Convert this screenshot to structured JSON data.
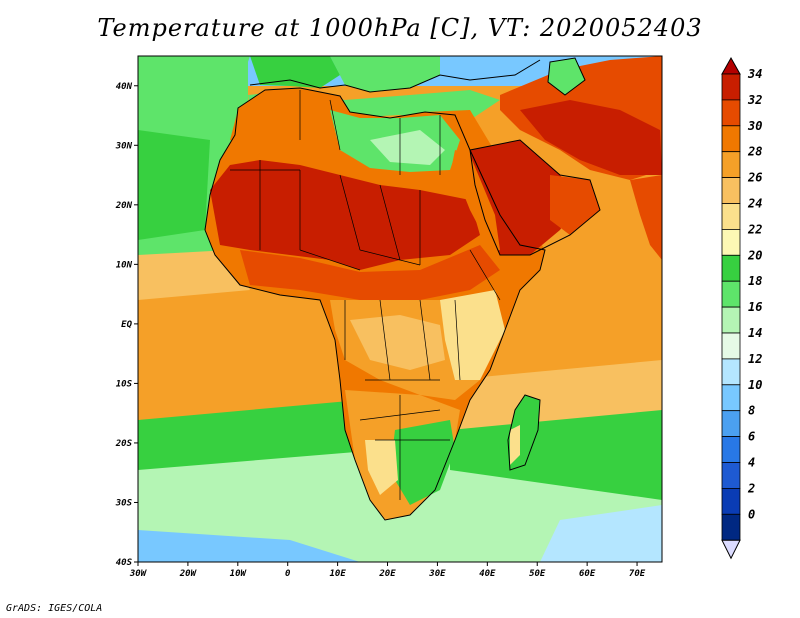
{
  "title": "Temperature at 1000hPa [C], VT: 2020052403",
  "credit": "GrADS: IGES/COLA",
  "map": {
    "projection": "lat-lon",
    "lon_range": [
      -30,
      75
    ],
    "lat_range": [
      -40,
      45
    ],
    "lon_ticks": [
      {
        "value": -30,
        "label": "30W"
      },
      {
        "value": -20,
        "label": "20W"
      },
      {
        "value": -10,
        "label": "10W"
      },
      {
        "value": 0,
        "label": "0"
      },
      {
        "value": 10,
        "label": "10E"
      },
      {
        "value": 20,
        "label": "20E"
      },
      {
        "value": 30,
        "label": "30E"
      },
      {
        "value": 40,
        "label": "40E"
      },
      {
        "value": 50,
        "label": "50E"
      },
      {
        "value": 60,
        "label": "60E"
      },
      {
        "value": 70,
        "label": "70E"
      }
    ],
    "lat_ticks": [
      {
        "value": 40,
        "label": "40N"
      },
      {
        "value": 30,
        "label": "30N"
      },
      {
        "value": 20,
        "label": "20N"
      },
      {
        "value": 10,
        "label": "10N"
      },
      {
        "value": 0,
        "label": "EQ"
      },
      {
        "value": -10,
        "label": "10S"
      },
      {
        "value": -20,
        "label": "20S"
      },
      {
        "value": -30,
        "label": "30S"
      },
      {
        "value": -40,
        "label": "40S"
      }
    ]
  },
  "colorbar": {
    "unit": "C",
    "levels": [
      {
        "label": "34",
        "color": "#c81e00"
      },
      {
        "label": "32",
        "color": "#e64b00"
      },
      {
        "label": "30",
        "color": "#f07800"
      },
      {
        "label": "28",
        "color": "#f5a028"
      },
      {
        "label": "26",
        "color": "#f8c060"
      },
      {
        "label": "24",
        "color": "#fbe08c"
      },
      {
        "label": "22",
        "color": "#fdf8b4"
      },
      {
        "label": "20",
        "color": "#37d040"
      },
      {
        "label": "18",
        "color": "#5ee46a"
      },
      {
        "label": "16",
        "color": "#b4f5b4"
      },
      {
        "label": "14",
        "color": "#e6fae6"
      },
      {
        "label": "12",
        "color": "#b4e6ff"
      },
      {
        "label": "10",
        "color": "#78c8ff"
      },
      {
        "label": "8",
        "color": "#4ba0f0"
      },
      {
        "label": "6",
        "color": "#2878e6"
      },
      {
        "label": "4",
        "color": "#1e5ad2"
      },
      {
        "label": "2",
        "color": "#0a3cb4"
      },
      {
        "label": "0",
        "color": "#002882"
      }
    ],
    "over_color": "#b40000",
    "under_color": "#dcdcff"
  },
  "colors": {
    "ocean_warm": "#f5a028",
    "ocean_mid": "#f8c060",
    "ocean_green": "#37d040",
    "ocean_cool": "#b4f5b4",
    "ocean_blue": "#78c8ff",
    "land_hot": "#c81e00",
    "land_warm": "#e64b00",
    "land_mild": "#f07800",
    "med_sea": "#5ee46a"
  }
}
